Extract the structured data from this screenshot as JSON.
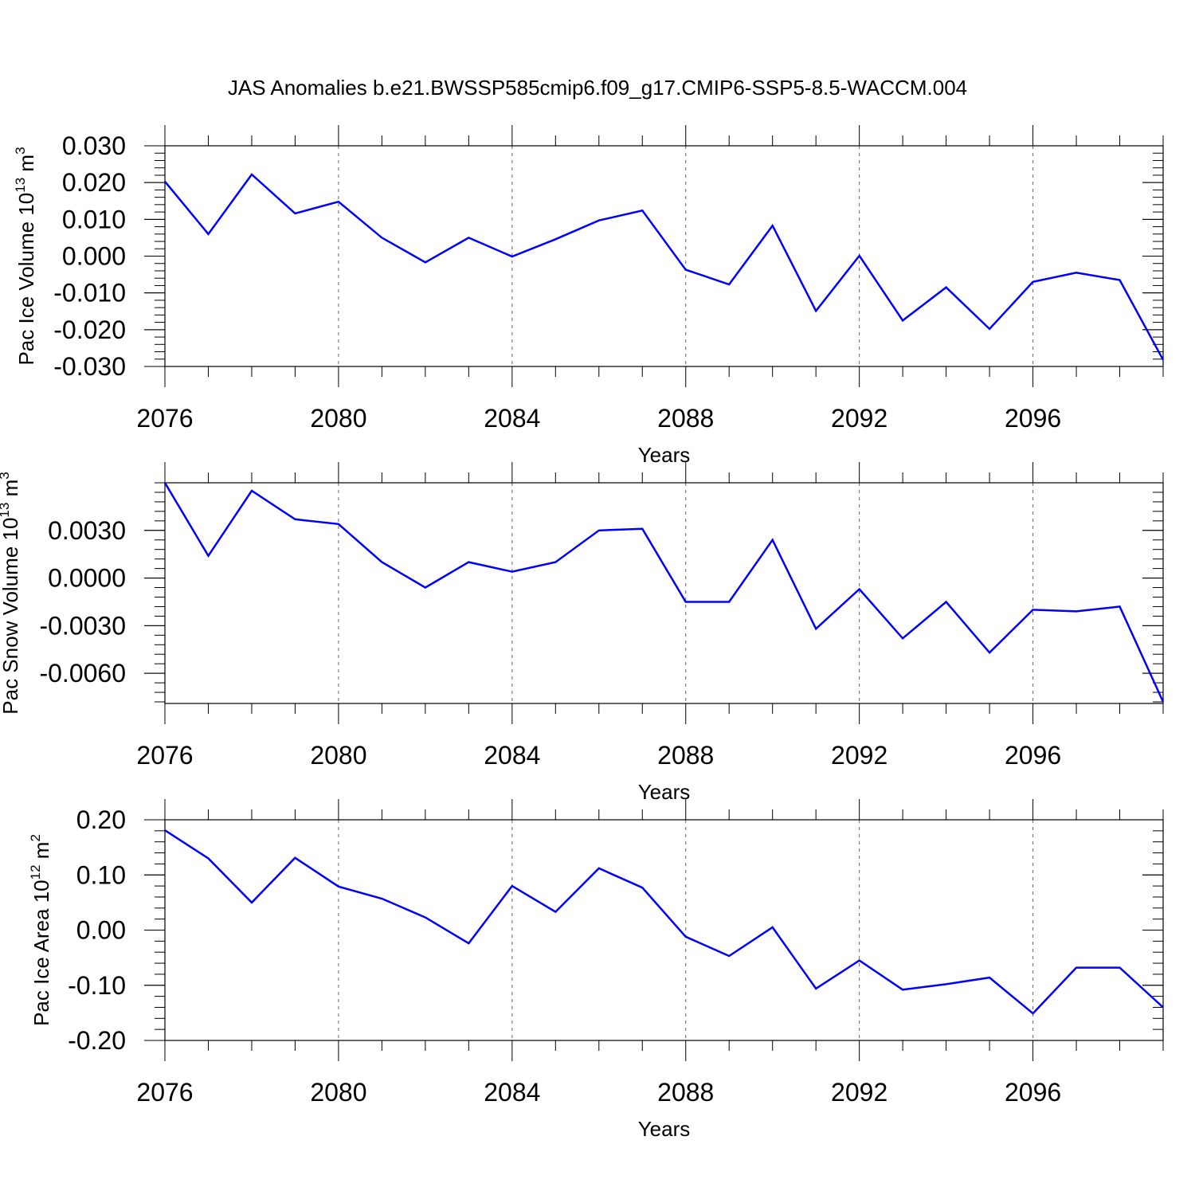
{
  "title": "JAS Anomalies b.e21.BWSSP585cmip6.f09_g17.CMIP6-SSP5-8.5-WACCM.004",
  "line_color": "#0000ff",
  "chart_data": [
    {
      "type": "line",
      "ylabel": {
        "main": "Pac Ice Volume 10",
        "sup": "13",
        "unit": " m",
        "unit_sup": "3"
      },
      "xlabel": "Years",
      "xlim": [
        2076,
        2099
      ],
      "ylim": [
        -0.03,
        0.03
      ],
      "yticks": [
        0.03,
        0.02,
        0.01,
        0.0,
        -0.01,
        -0.02,
        -0.03
      ],
      "ytick_labels": [
        "0.030",
        "0.020",
        "0.010",
        "0.000",
        "-0.010",
        "-0.020",
        "-0.030"
      ],
      "yminor_step": 0.002,
      "xticks": [
        2076,
        2080,
        2084,
        2088,
        2092,
        2096
      ],
      "xtick_labels": [
        "2076",
        "2080",
        "2084",
        "2088",
        "2092",
        "2096"
      ],
      "grid": "vertical-dashed",
      "series": [
        {
          "x": [
            2076,
            2077,
            2078,
            2079,
            2080,
            2081,
            2082,
            2083,
            2084,
            2085,
            2086,
            2087,
            2088,
            2089,
            2090,
            2091,
            2092,
            2093,
            2094,
            2095,
            2096,
            2097,
            2098,
            2099
          ],
          "values": [
            0.0203,
            0.006,
            0.0222,
            0.0116,
            0.0148,
            0.005,
            -0.0017,
            0.005,
            -0.0001,
            0.0046,
            0.0097,
            0.0124,
            -0.0037,
            -0.0077,
            0.0083,
            -0.0149,
            0.0001,
            -0.0175,
            -0.0085,
            -0.0198,
            -0.007,
            -0.0045,
            -0.0065,
            -0.0282
          ]
        }
      ]
    },
    {
      "type": "line",
      "ylabel": {
        "main": "Pac Snow Volume 10",
        "sup": "13",
        "unit": " m",
        "unit_sup": "3"
      },
      "xlabel": "Years",
      "xlim": [
        2076,
        2099
      ],
      "ylim": [
        -0.0079,
        0.006
      ],
      "yticks": [
        0.003,
        0.0,
        -0.003,
        -0.006
      ],
      "ytick_labels": [
        "0.0030",
        "0.0000",
        "-0.0030",
        "-0.0060"
      ],
      "yminor_step": 0.0006,
      "xticks": [
        2076,
        2080,
        2084,
        2088,
        2092,
        2096
      ],
      "xtick_labels": [
        "2076",
        "2080",
        "2084",
        "2088",
        "2092",
        "2096"
      ],
      "grid": "vertical-dashed",
      "series": [
        {
          "x": [
            2076,
            2077,
            2078,
            2079,
            2080,
            2081,
            2082,
            2083,
            2084,
            2085,
            2086,
            2087,
            2088,
            2089,
            2090,
            2091,
            2092,
            2093,
            2094,
            2095,
            2096,
            2097,
            2098,
            2099
          ],
          "values": [
            0.006,
            0.0014,
            0.0055,
            0.0037,
            0.0034,
            0.001,
            -0.0006,
            0.001,
            0.0004,
            0.001,
            0.003,
            0.0031,
            -0.0015,
            -0.0015,
            0.0024,
            -0.0032,
            -0.0007,
            -0.0038,
            -0.0015,
            -0.0047,
            -0.002,
            -0.0021,
            -0.0018,
            -0.0078
          ]
        }
      ]
    },
    {
      "type": "line",
      "ylabel": {
        "main": "Pac Ice Area 10",
        "sup": "12",
        "unit": " m",
        "unit_sup": "2"
      },
      "xlabel": "Years",
      "xlim": [
        2076,
        2099
      ],
      "ylim": [
        -0.2,
        0.2
      ],
      "yticks": [
        0.2,
        0.1,
        0.0,
        -0.1,
        -0.2
      ],
      "ytick_labels": [
        "0.20",
        "0.10",
        "0.00",
        "-0.10",
        "-0.20"
      ],
      "yminor_step": 0.02,
      "xticks": [
        2076,
        2080,
        2084,
        2088,
        2092,
        2096
      ],
      "xtick_labels": [
        "2076",
        "2080",
        "2084",
        "2088",
        "2092",
        "2096"
      ],
      "grid": "vertical-dashed",
      "series": [
        {
          "x": [
            2076,
            2077,
            2078,
            2079,
            2080,
            2081,
            2082,
            2083,
            2084,
            2085,
            2086,
            2087,
            2088,
            2089,
            2090,
            2091,
            2092,
            2093,
            2094,
            2095,
            2096,
            2097,
            2098,
            2099
          ],
          "values": [
            0.181,
            0.13,
            0.05,
            0.131,
            0.079,
            0.057,
            0.023,
            -0.024,
            0.08,
            0.033,
            0.112,
            0.077,
            -0.012,
            -0.047,
            0.005,
            -0.106,
            -0.055,
            -0.108,
            -0.098,
            -0.086,
            -0.151,
            -0.068,
            -0.068,
            -0.14
          ]
        }
      ]
    }
  ]
}
